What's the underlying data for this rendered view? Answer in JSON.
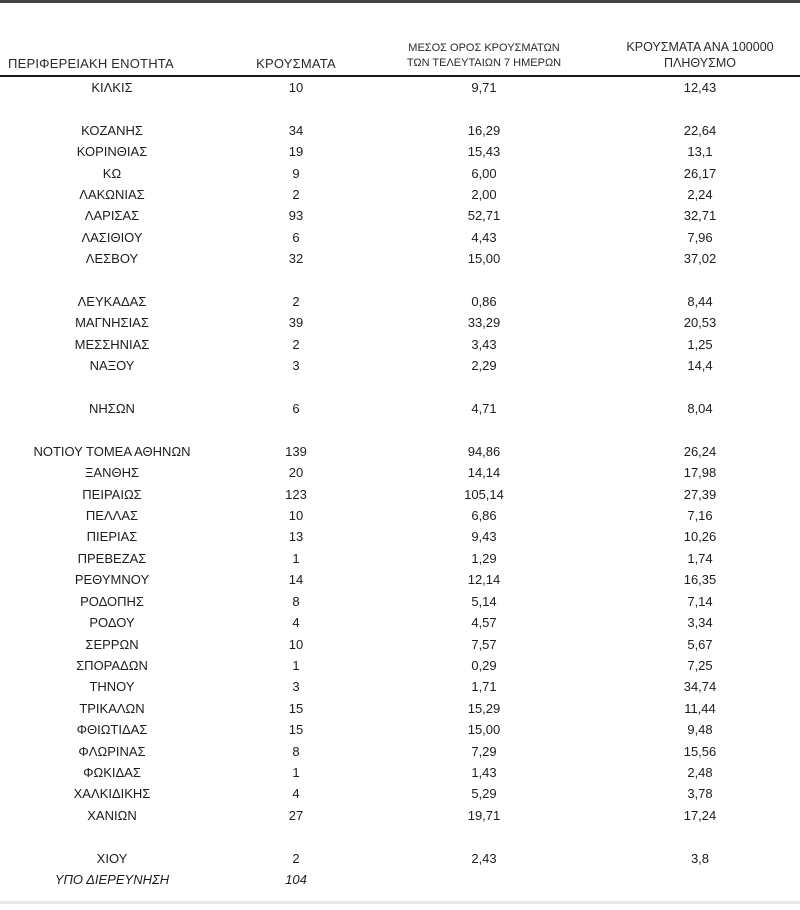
{
  "header": {
    "col_region_label": "ΠΕΡΙΦΕΡΕΙΑΚΗ ΕΝΟΤΗΤΑ",
    "col_cases_label": "ΚΡΟΥΣΜΑΤΑ",
    "col_avg_line1": "ΜΕΣΟΣ ΟΡΟΣ ΚΡΟΥΣΜΑΤΩΝ",
    "col_avg_line2": "ΤΩΝ ΤΕΛΕΥΤΑΙΩΝ 7 ΗΜΕΡΩΝ",
    "col_per100k_line1": "ΚΡΟΥΣΜΑΤΑ ΑΝΑ 100000",
    "col_per100k_line2": "ΠΛΗΘΥΣΜΟ"
  },
  "colors": {
    "top_rule": "#424242",
    "header_rule": "#161616",
    "bottom_rule": "#e7e7e7",
    "text": "#1d1d1d",
    "header_text": "#2a2a2a",
    "background": "#ffffff"
  },
  "chart_data": {
    "type": "table",
    "columns": [
      "ΠΕΡΙΦΕΡΕΙΑΚΗ ΕΝΟΤΗΤΑ",
      "ΚΡΟΥΣΜΑΤΑ",
      "ΜΕΣΟΣ ΟΡΟΣ ΚΡΟΥΣΜΑΤΩΝ ΤΩΝ ΤΕΛΕΥΤΑΙΩΝ 7 ΗΜΕΡΩΝ",
      "ΚΡΟΥΣΜΑΤΑ ΑΝΑ 100000 ΠΛΗΘΥΣΜΟ"
    ],
    "rows": [
      {
        "region": "ΚΙΛΚΙΣ",
        "cases": "10",
        "avg_7d": "9,71",
        "per_100k": "12,43"
      },
      {
        "spacer": true
      },
      {
        "region": "ΚΟΖΑΝΗΣ",
        "cases": "34",
        "avg_7d": "16,29",
        "per_100k": "22,64"
      },
      {
        "region": "ΚΟΡΙΝΘΙΑΣ",
        "cases": "19",
        "avg_7d": "15,43",
        "per_100k": "13,1"
      },
      {
        "region": "ΚΩ",
        "cases": "9",
        "avg_7d": "6,00",
        "per_100k": "26,17"
      },
      {
        "region": "ΛΑΚΩΝΙΑΣ",
        "cases": "2",
        "avg_7d": "2,00",
        "per_100k": "2,24"
      },
      {
        "region": "ΛΑΡΙΣΑΣ",
        "cases": "93",
        "avg_7d": "52,71",
        "per_100k": "32,71"
      },
      {
        "region": "ΛΑΣΙΘΙΟΥ",
        "cases": "6",
        "avg_7d": "4,43",
        "per_100k": "7,96"
      },
      {
        "region": "ΛΕΣΒΟΥ",
        "cases": "32",
        "avg_7d": "15,00",
        "per_100k": "37,02"
      },
      {
        "spacer": true
      },
      {
        "region": "ΛΕΥΚΑΔΑΣ",
        "cases": "2",
        "avg_7d": "0,86",
        "per_100k": "8,44"
      },
      {
        "region": "ΜΑΓΝΗΣΙΑΣ",
        "cases": "39",
        "avg_7d": "33,29",
        "per_100k": "20,53"
      },
      {
        "region": "ΜΕΣΣΗΝΙΑΣ",
        "cases": "2",
        "avg_7d": "3,43",
        "per_100k": "1,25"
      },
      {
        "region": "ΝΑΞΟΥ",
        "cases": "3",
        "avg_7d": "2,29",
        "per_100k": "14,4"
      },
      {
        "spacer": true
      },
      {
        "region": "ΝΗΣΩΝ",
        "cases": "6",
        "avg_7d": "4,71",
        "per_100k": "8,04"
      },
      {
        "spacer": true
      },
      {
        "region": "ΝΟΤΙΟΥ ΤΟΜΕΑ ΑΘΗΝΩΝ",
        "cases": "139",
        "avg_7d": "94,86",
        "per_100k": "26,24"
      },
      {
        "region": "ΞΑΝΘΗΣ",
        "cases": "20",
        "avg_7d": "14,14",
        "per_100k": "17,98"
      },
      {
        "region": "ΠΕΙΡΑΙΩΣ",
        "cases": "123",
        "avg_7d": "105,14",
        "per_100k": "27,39"
      },
      {
        "region": "ΠΕΛΛΑΣ",
        "cases": "10",
        "avg_7d": "6,86",
        "per_100k": "7,16"
      },
      {
        "region": "ΠΙΕΡΙΑΣ",
        "cases": "13",
        "avg_7d": "9,43",
        "per_100k": "10,26"
      },
      {
        "region": "ΠΡΕΒΕΖΑΣ",
        "cases": "1",
        "avg_7d": "1,29",
        "per_100k": "1,74"
      },
      {
        "region": "ΡΕΘΥΜΝΟΥ",
        "cases": "14",
        "avg_7d": "12,14",
        "per_100k": "16,35"
      },
      {
        "region": "ΡΟΔΟΠΗΣ",
        "cases": "8",
        "avg_7d": "5,14",
        "per_100k": "7,14"
      },
      {
        "region": "ΡΟΔΟΥ",
        "cases": "4",
        "avg_7d": "4,57",
        "per_100k": "3,34"
      },
      {
        "region": "ΣΕΡΡΩΝ",
        "cases": "10",
        "avg_7d": "7,57",
        "per_100k": "5,67"
      },
      {
        "region": "ΣΠΟΡΑΔΩΝ",
        "cases": "1",
        "avg_7d": "0,29",
        "per_100k": "7,25"
      },
      {
        "region": "ΤΗΝΟΥ",
        "cases": "3",
        "avg_7d": "1,71",
        "per_100k": "34,74"
      },
      {
        "region": "ΤΡΙΚΑΛΩΝ",
        "cases": "15",
        "avg_7d": "15,29",
        "per_100k": "11,44"
      },
      {
        "region": "ΦΘΙΩΤΙΔΑΣ",
        "cases": "15",
        "avg_7d": "15,00",
        "per_100k": "9,48"
      },
      {
        "region": "ΦΛΩΡΙΝΑΣ",
        "cases": "8",
        "avg_7d": "7,29",
        "per_100k": "15,56"
      },
      {
        "region": "ΦΩΚΙΔΑΣ",
        "cases": "1",
        "avg_7d": "1,43",
        "per_100k": "2,48"
      },
      {
        "region": "ΧΑΛΚΙΔΙΚΗΣ",
        "cases": "4",
        "avg_7d": "5,29",
        "per_100k": "3,78"
      },
      {
        "region": "ΧΑΝΙΩΝ",
        "cases": "27",
        "avg_7d": "19,71",
        "per_100k": "17,24"
      },
      {
        "spacer": true
      },
      {
        "region": "ΧΙΟΥ",
        "cases": "2",
        "avg_7d": "2,43",
        "per_100k": "3,8"
      },
      {
        "region": "ΥΠΟ ΔΙΕΡΕΥΝΗΣΗ",
        "cases": "104",
        "avg_7d": "",
        "per_100k": "",
        "italic": true
      }
    ]
  }
}
